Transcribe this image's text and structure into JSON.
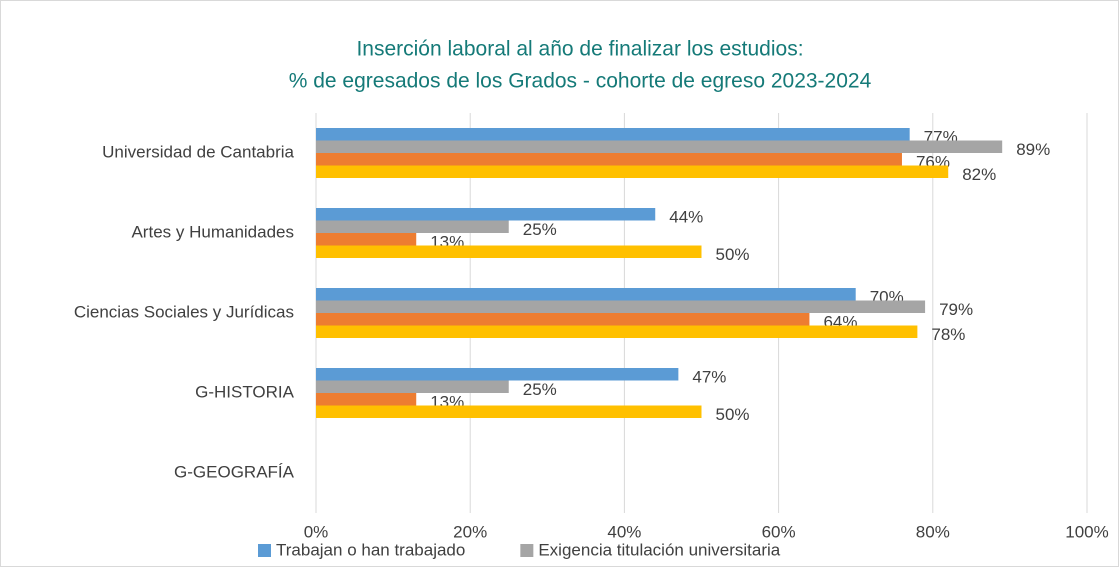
{
  "chart_data": {
    "type": "hbar",
    "title_lines": [
      "Inserción laboral al año de finalizar los estudios:",
      "% de egresados de los Grados - cohorte de egreso 2023-2024"
    ],
    "categories": [
      "Universidad de Cantabria",
      "Artes y Humanidades",
      "Ciencias Sociales y Jurídicas",
      "G-HISTORIA",
      "G-GEOGRAFÍA"
    ],
    "series": [
      {
        "name": "Trabajan o han trabajado",
        "color": "#5b9bd5",
        "values": [
          77,
          44,
          70,
          47,
          null
        ],
        "value_labels": [
          "77%",
          "44%",
          "70%",
          "47%",
          null
        ]
      },
      {
        "name": "Exigencia titulación universitaria",
        "color": "#a5a5a5",
        "values": [
          89,
          25,
          79,
          25,
          null
        ],
        "value_labels": [
          "89%",
          "25%",
          "79%",
          "25%",
          null
        ]
      },
      {
        "color": "#ed7d31",
        "values": [
          76,
          13,
          64,
          13,
          null
        ],
        "value_labels": [
          "76%",
          "13%",
          "64%",
          "13%",
          null
        ]
      },
      {
        "color": "#ffc000",
        "values": [
          82,
          50,
          78,
          50,
          null
        ],
        "value_labels": [
          "82%",
          "50%",
          "78%",
          "50%",
          null
        ]
      }
    ],
    "xlim": [
      0,
      100
    ],
    "xticks": [
      {
        "value": 0,
        "label": "0%"
      },
      {
        "value": 20,
        "label": "20%"
      },
      {
        "value": 40,
        "label": "40%"
      },
      {
        "value": 60,
        "label": "60%"
      },
      {
        "value": 80,
        "label": "80%"
      },
      {
        "value": 100,
        "label": "100%"
      }
    ],
    "grid": true,
    "legend": "bottom"
  }
}
